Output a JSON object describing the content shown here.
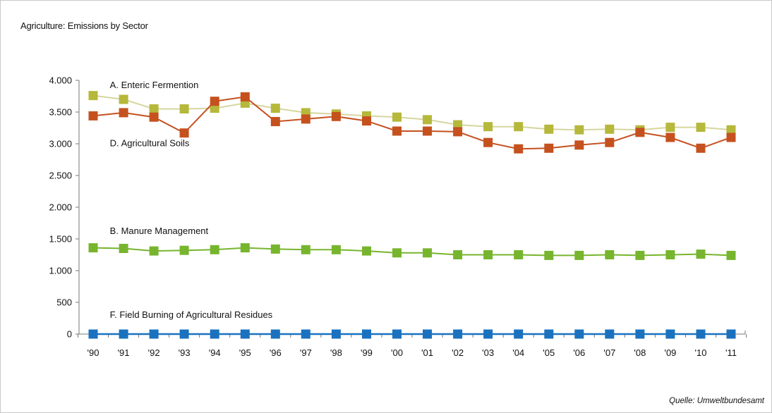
{
  "chart_data": {
    "type": "line",
    "title": "Agriculture: Emissions by Sector",
    "source": "Quelle: Umweltbundesamt",
    "xlabel": "",
    "ylabel": "",
    "ylim": [
      0,
      4000
    ],
    "yticks": [
      0,
      500,
      1000,
      1500,
      2000,
      2500,
      3000,
      3500,
      4000
    ],
    "ytick_labels": [
      "0",
      "500",
      "1.000",
      "1.500",
      "2.000",
      "2.500",
      "3.000",
      "3.500",
      "4.000"
    ],
    "categories": [
      "'90",
      "'91",
      "'92",
      "'93",
      "'94",
      "'95",
      "'96",
      "'97",
      "'98",
      "'99",
      "'00",
      "'01",
      "'02",
      "'03",
      "'04",
      "'05",
      "'06",
      "'07",
      "'08",
      "'09",
      "'10",
      "'11"
    ],
    "grid": false,
    "legend": "inline labels",
    "series": [
      {
        "name": "A. Enteric Fermention",
        "color": "#b5b83a",
        "line_color": "#d6d6a0",
        "values": [
          3760,
          3700,
          3550,
          3550,
          3560,
          3640,
          3560,
          3490,
          3470,
          3440,
          3420,
          3380,
          3300,
          3270,
          3270,
          3230,
          3220,
          3230,
          3220,
          3260,
          3260,
          3220
        ]
      },
      {
        "name": "D. Agricultural Soils",
        "color": "#c5511f",
        "line_color": "#c5511f",
        "values": [
          3440,
          3490,
          3420,
          3170,
          3670,
          3740,
          3350,
          3390,
          3430,
          3360,
          3200,
          3200,
          3190,
          3020,
          2920,
          2930,
          2980,
          3020,
          3180,
          3100,
          2930,
          3100
        ]
      },
      {
        "name": "B. Manure Management",
        "color": "#77b52e",
        "line_color": "#77b52e",
        "values": [
          1360,
          1350,
          1310,
          1320,
          1330,
          1360,
          1340,
          1330,
          1330,
          1310,
          1280,
          1280,
          1250,
          1250,
          1250,
          1240,
          1240,
          1250,
          1240,
          1250,
          1260,
          1240
        ]
      },
      {
        "name": "F. Field Burning of Agricultural Residues",
        "color": "#1a72bf",
        "line_color": "#1a72bf",
        "values": [
          0,
          0,
          0,
          0,
          0,
          0,
          0,
          0,
          0,
          0,
          0,
          0,
          0,
          0,
          0,
          0,
          0,
          0,
          0,
          0,
          0,
          0
        ]
      }
    ]
  }
}
